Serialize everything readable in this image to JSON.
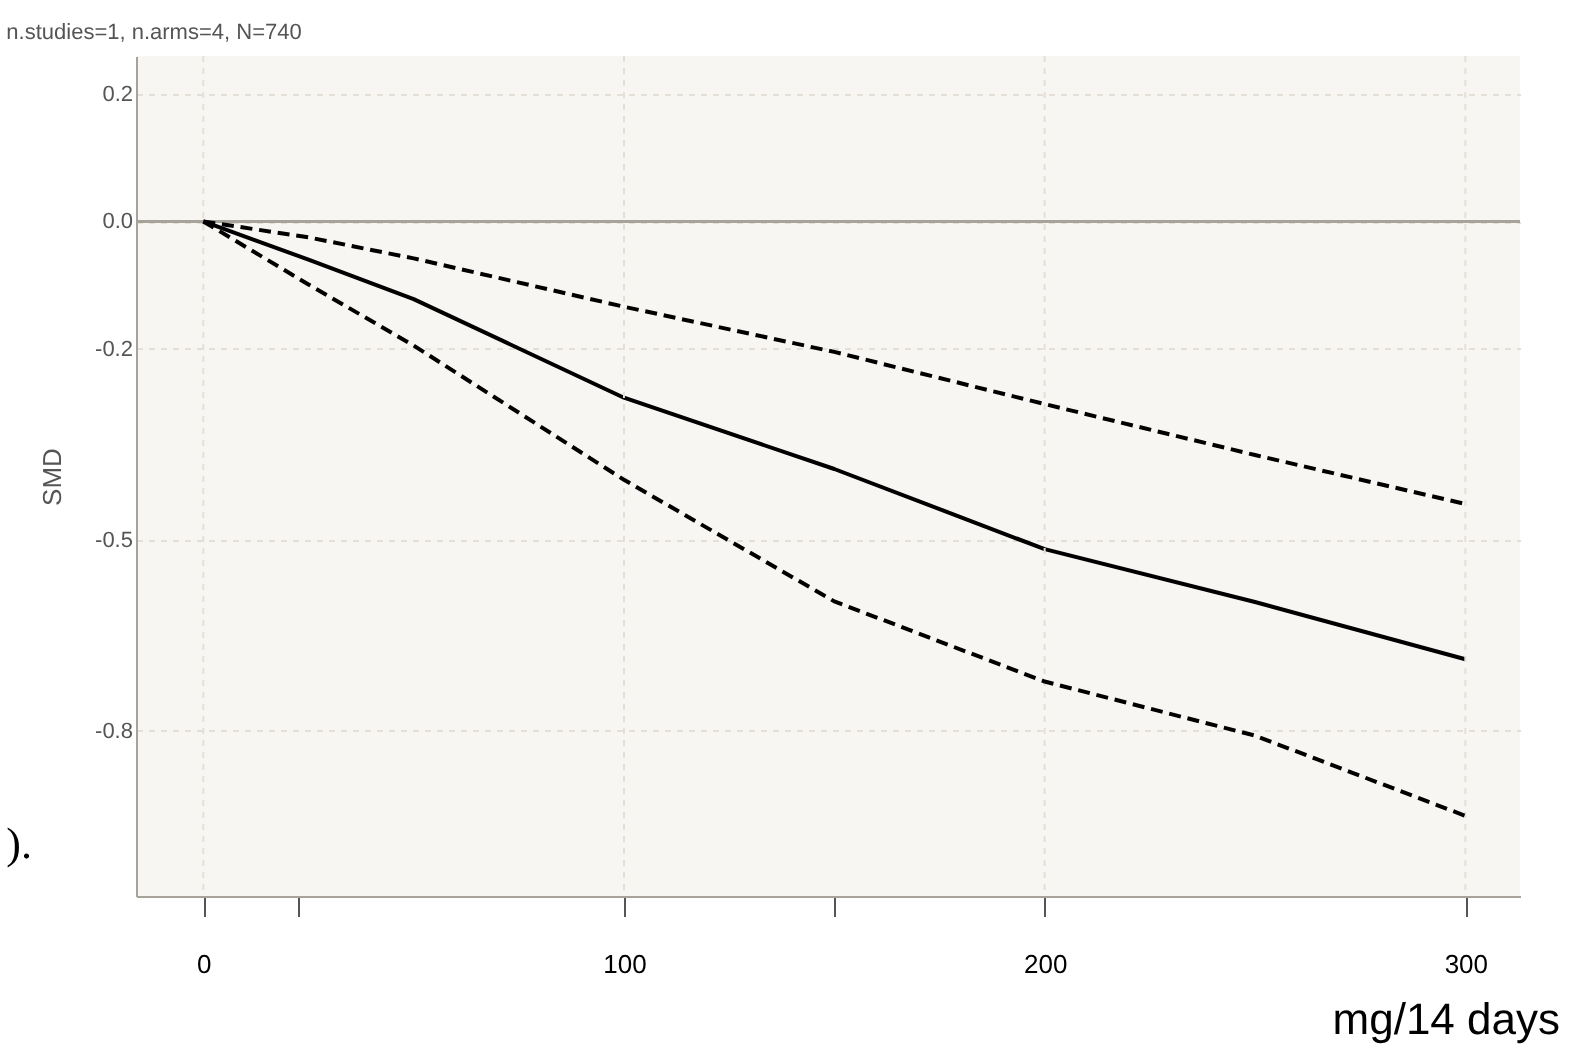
{
  "chart_data": {
    "type": "line",
    "title": "n.studies=1, n.arms=4, N=740",
    "xlabel": "mg/14 days",
    "ylabel": "SMD",
    "annotations": [
      ")."
    ],
    "x": [
      0,
      25,
      50,
      100,
      150,
      200,
      250,
      300
    ],
    "series": [
      {
        "color": "#000000",
        "line_style": "solid",
        "values": [
          0,
          -0.06,
          -0.122,
          -0.277,
          -0.389,
          -0.515,
          -0.598,
          -0.688
        ]
      },
      {
        "color": "#000000",
        "line_style": "dashed",
        "values": [
          0,
          -0.025,
          -0.058,
          -0.134,
          -0.205,
          -0.287,
          -0.367,
          -0.444
        ]
      },
      {
        "color": "#000000",
        "line_style": "dashed",
        "values": [
          0,
          -0.099,
          -0.195,
          -0.406,
          -0.597,
          -0.723,
          -0.808,
          -0.934
        ]
      }
    ],
    "xlim": [
      -16,
      313
    ],
    "ylim": [
      -1.06,
      0.26
    ],
    "xticks": [
      0,
      {
        "value": 22.5,
        "label": null
      },
      100,
      {
        "value": 150,
        "label": null
      },
      200,
      300
    ],
    "yticks": [
      0.2,
      {
        "value": 0,
        "label": "0.0"
      },
      -0.2,
      -0.5,
      -0.8
    ],
    "ref_lines": [
      {
        "axis": "y",
        "value": 0,
        "color": "#a8a39a"
      }
    ],
    "grid": true,
    "legend": false,
    "marker": "none"
  }
}
